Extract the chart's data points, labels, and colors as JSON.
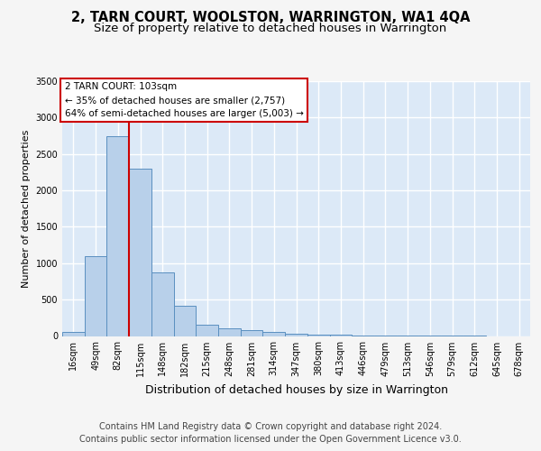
{
  "title": "2, TARN COURT, WOOLSTON, WARRINGTON, WA1 4QA",
  "subtitle": "Size of property relative to detached houses in Warrington",
  "xlabel": "Distribution of detached houses by size in Warrington",
  "ylabel": "Number of detached properties",
  "bin_labels": [
    "16sqm",
    "49sqm",
    "82sqm",
    "115sqm",
    "148sqm",
    "182sqm",
    "215sqm",
    "248sqm",
    "281sqm",
    "314sqm",
    "347sqm",
    "380sqm",
    "413sqm",
    "446sqm",
    "479sqm",
    "513sqm",
    "546sqm",
    "579sqm",
    "612sqm",
    "645sqm",
    "678sqm"
  ],
  "bar_values": [
    50,
    1100,
    2750,
    2300,
    870,
    420,
    155,
    110,
    75,
    55,
    35,
    20,
    15,
    10,
    5,
    3,
    2,
    1,
    1,
    0,
    0
  ],
  "bar_color": "#b8d0ea",
  "bar_edge_color": "#5a8fc0",
  "vline_x": 2.5,
  "vline_color": "#cc0000",
  "annotation_line1": "2 TARN COURT: 103sqm",
  "annotation_line2": "← 35% of detached houses are smaller (2,757)",
  "annotation_line3": "64% of semi-detached houses are larger (5,003) →",
  "annotation_box_facecolor": "#ffffff",
  "annotation_box_edgecolor": "#cc0000",
  "ylim_max": 3500,
  "yticks": [
    0,
    500,
    1000,
    1500,
    2000,
    2500,
    3000,
    3500
  ],
  "plot_bg_color": "#dce9f7",
  "fig_bg_color": "#f5f5f5",
  "grid_color": "#ffffff",
  "title_fontsize": 10.5,
  "subtitle_fontsize": 9.5,
  "ylabel_fontsize": 8,
  "xlabel_fontsize": 9,
  "tick_fontsize": 7,
  "annotation_fontsize": 7.5,
  "footer_fontsize": 7,
  "footer_line1": "Contains HM Land Registry data © Crown copyright and database right 2024.",
  "footer_line2": "Contains public sector information licensed under the Open Government Licence v3.0."
}
